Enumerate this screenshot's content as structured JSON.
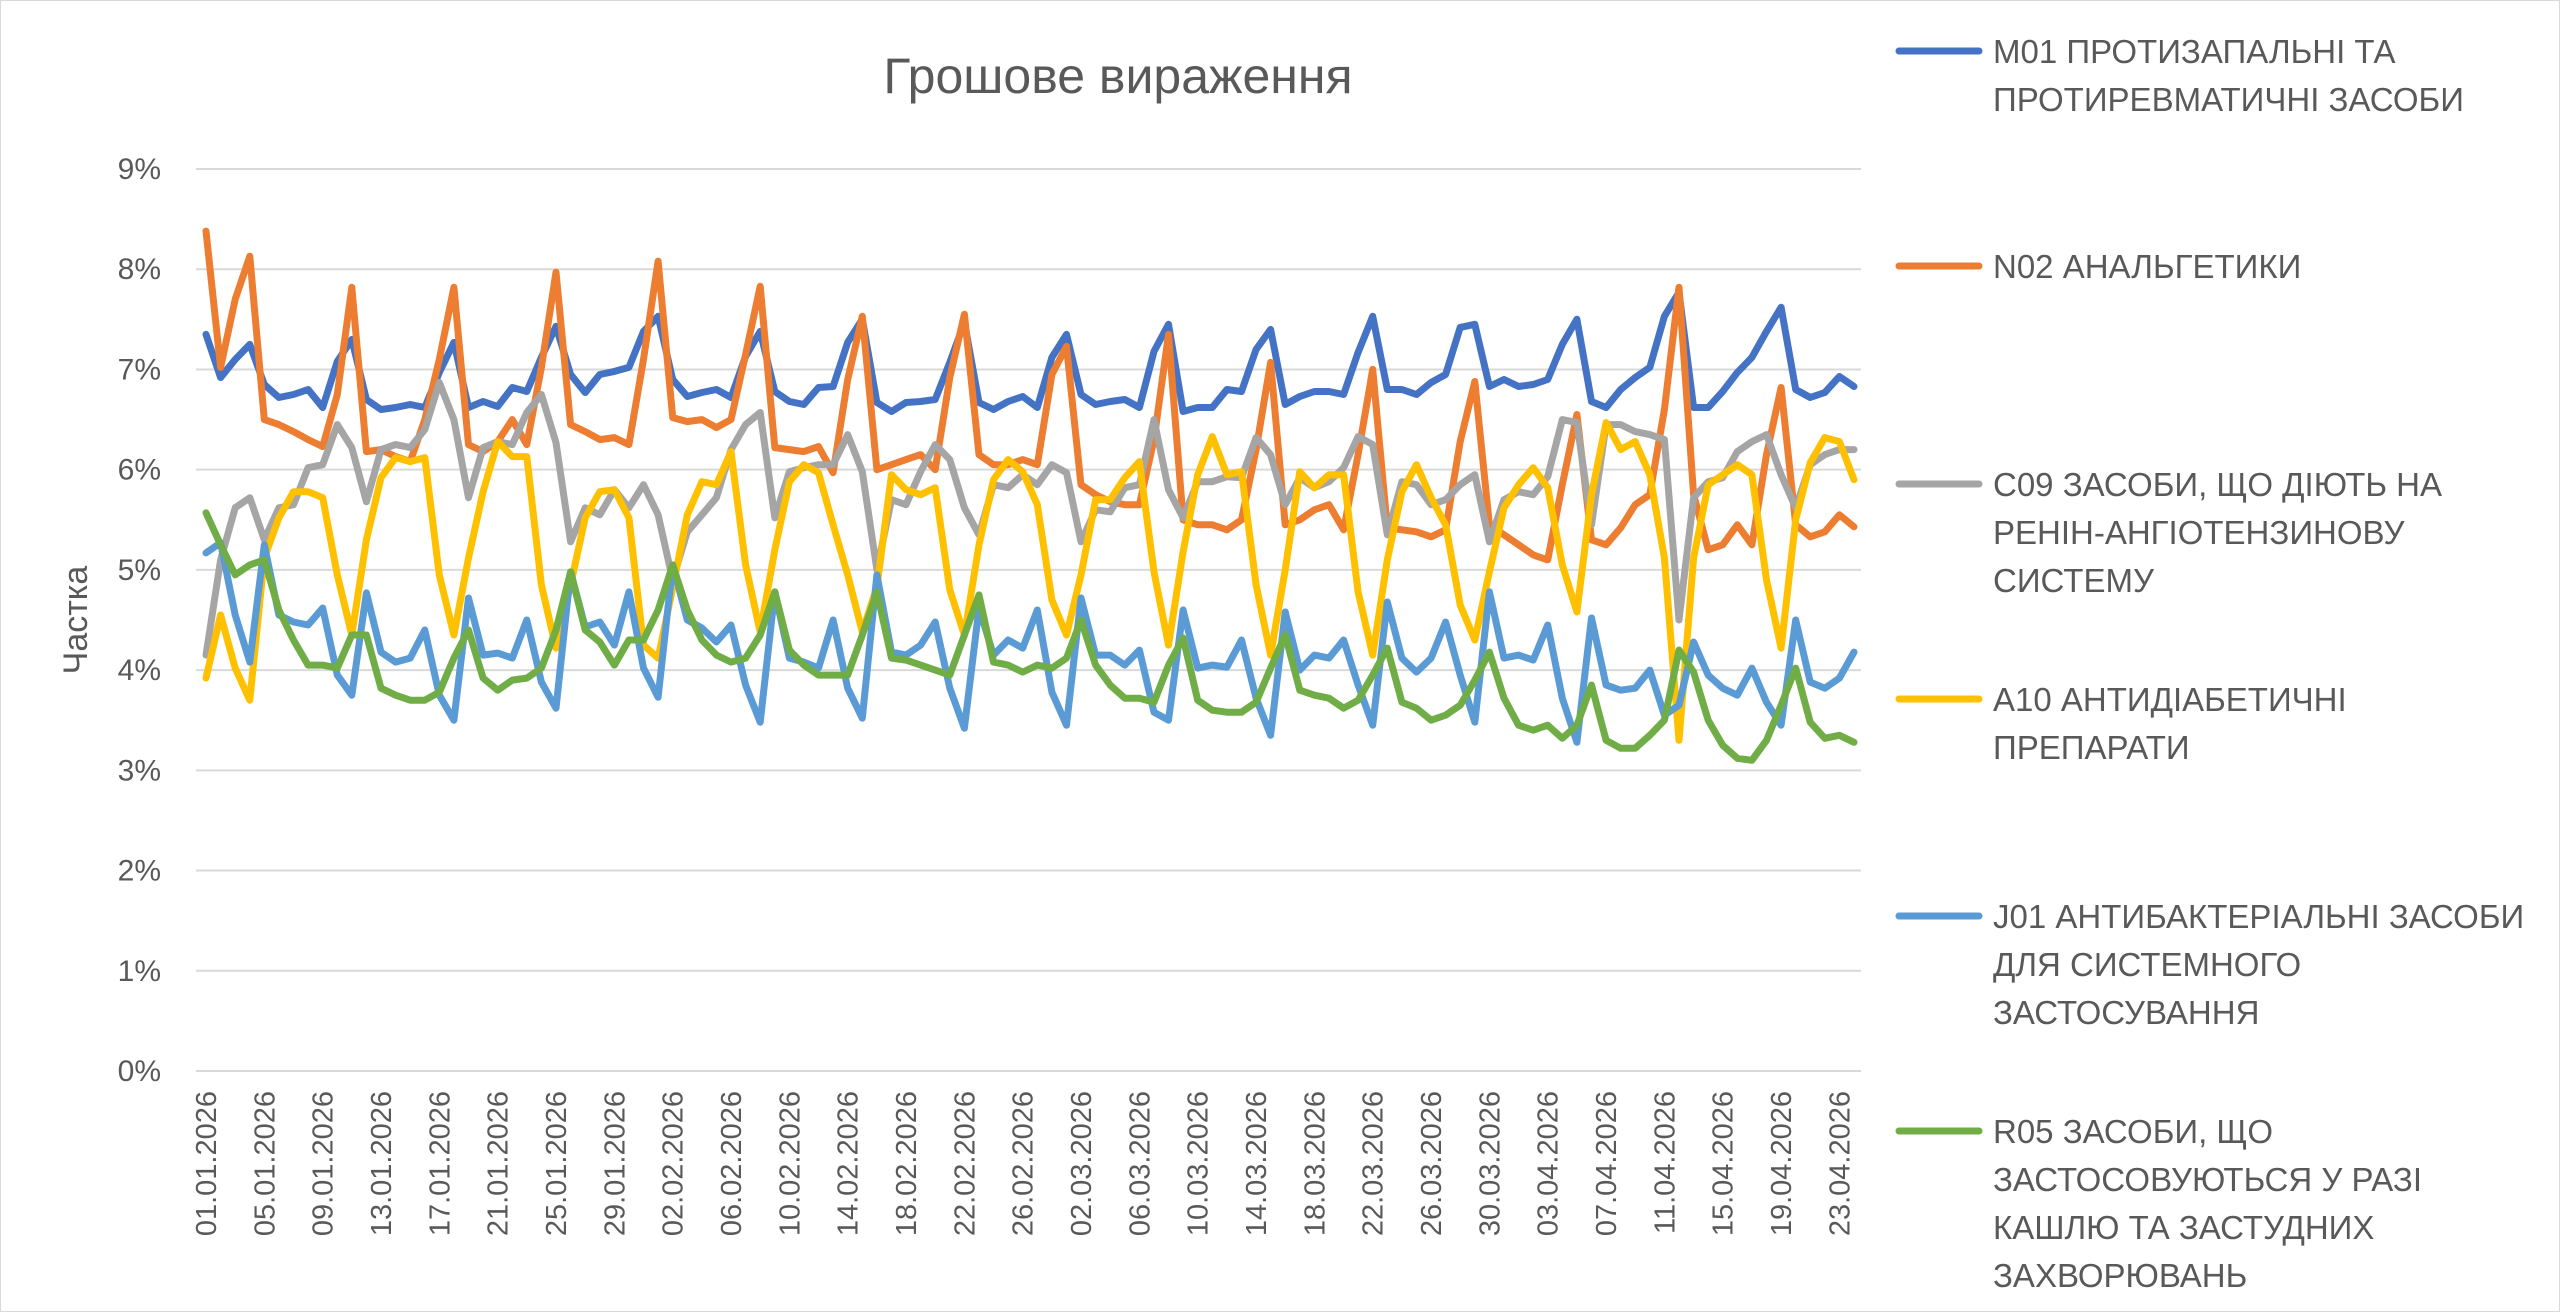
{
  "chart_data": {
    "type": "line",
    "title": "Грошове вираження",
    "ylabel": "Частка",
    "xlabel": "",
    "ylim": [
      0,
      9
    ],
    "y_ticks": [
      "0%",
      "1%",
      "2%",
      "3%",
      "4%",
      "5%",
      "6%",
      "7%",
      "8%",
      "9%"
    ],
    "grid": true,
    "legend_position": "right",
    "x_tick_labels": [
      "01.01.2026",
      "05.01.2026",
      "09.01.2026",
      "13.01.2026",
      "17.01.2026",
      "21.01.2026",
      "25.01.2026",
      "29.01.2026",
      "02.02.2026",
      "06.02.2026",
      "10.02.2026",
      "14.02.2026",
      "18.02.2026",
      "22.02.2026",
      "26.02.2026",
      "02.03.2026",
      "06.03.2026",
      "10.03.2026",
      "14.03.2026",
      "18.03.2026",
      "22.03.2026",
      "26.03.2026",
      "30.03.2026",
      "03.04.2026",
      "07.04.2026",
      "11.04.2026",
      "15.04.2026",
      "19.04.2026",
      "23.04.2026"
    ],
    "x": [
      "01.01.2026",
      "02.01.2026",
      "03.01.2026",
      "04.01.2026",
      "05.01.2026",
      "06.01.2026",
      "07.01.2026",
      "08.01.2026",
      "09.01.2026",
      "10.01.2026",
      "11.01.2026",
      "12.01.2026",
      "13.01.2026",
      "14.01.2026",
      "15.01.2026",
      "16.01.2026",
      "17.01.2026",
      "18.01.2026",
      "19.01.2026",
      "20.01.2026",
      "21.01.2026",
      "22.01.2026",
      "23.01.2026",
      "24.01.2026",
      "25.01.2026",
      "26.01.2026",
      "27.01.2026",
      "28.01.2026",
      "29.01.2026",
      "30.01.2026",
      "31.01.2026",
      "01.02.2026",
      "02.02.2026",
      "03.02.2026",
      "04.02.2026",
      "05.02.2026",
      "06.02.2026",
      "07.02.2026",
      "08.02.2026",
      "09.02.2026",
      "10.02.2026",
      "11.02.2026",
      "12.02.2026",
      "13.02.2026",
      "14.02.2026",
      "15.02.2026",
      "16.02.2026",
      "17.02.2026",
      "18.02.2026",
      "19.02.2026",
      "20.02.2026",
      "21.02.2026",
      "22.02.2026",
      "23.02.2026",
      "24.02.2026",
      "25.02.2026",
      "26.02.2026",
      "27.02.2026",
      "28.02.2026",
      "01.03.2026",
      "02.03.2026",
      "03.03.2026",
      "04.03.2026",
      "05.03.2026",
      "06.03.2026",
      "07.03.2026",
      "08.03.2026",
      "09.03.2026",
      "10.03.2026",
      "11.03.2026",
      "12.03.2026",
      "13.03.2026",
      "14.03.2026",
      "15.03.2026",
      "16.03.2026",
      "17.03.2026",
      "18.03.2026",
      "19.03.2026",
      "20.03.2026",
      "21.03.2026",
      "22.03.2026",
      "23.03.2026",
      "24.03.2026",
      "25.03.2026",
      "26.03.2026",
      "27.03.2026",
      "28.03.2026",
      "29.03.2026",
      "30.03.2026",
      "31.03.2026",
      "01.04.2026",
      "02.04.2026",
      "03.04.2026",
      "04.04.2026",
      "05.04.2026",
      "06.04.2026",
      "07.04.2026",
      "08.04.2026",
      "09.04.2026",
      "10.04.2026",
      "11.04.2026",
      "12.04.2026",
      "13.04.2026",
      "14.04.2026",
      "15.04.2026",
      "16.04.2026",
      "17.04.2026",
      "18.04.2026",
      "19.04.2026",
      "20.04.2026",
      "21.04.2026",
      "22.04.2026",
      "23.04.2026",
      "24.04.2026"
    ],
    "series": [
      {
        "name": "M01 ПРОТИЗАПАЛЬНІ ТА ПРОТИРЕВМАТИЧНІ ЗАСОБИ",
        "color": "#4472C4",
        "values": [
          7.35,
          6.92,
          7.1,
          7.25,
          6.85,
          6.72,
          6.75,
          6.8,
          6.62,
          7.08,
          7.3,
          6.7,
          6.6,
          6.62,
          6.65,
          6.62,
          6.97,
          7.27,
          6.62,
          6.68,
          6.63,
          6.82,
          6.78,
          7.12,
          7.43,
          6.95,
          6.77,
          6.95,
          6.98,
          7.02,
          7.38,
          7.53,
          6.9,
          6.73,
          6.77,
          6.8,
          6.72,
          7.13,
          7.38,
          6.78,
          6.68,
          6.65,
          6.82,
          6.83,
          7.27,
          7.5,
          6.67,
          6.58,
          6.67,
          6.68,
          6.7,
          7.07,
          7.47,
          6.67,
          6.6,
          6.68,
          6.73,
          6.62,
          7.12,
          7.35,
          6.75,
          6.65,
          6.68,
          6.7,
          6.62,
          7.18,
          7.45,
          6.58,
          6.62,
          6.62,
          6.8,
          6.78,
          7.2,
          7.4,
          6.65,
          6.73,
          6.78,
          6.78,
          6.75,
          7.17,
          7.53,
          6.8,
          6.8,
          6.75,
          6.87,
          6.95,
          7.42,
          7.45,
          6.83,
          6.9,
          6.83,
          6.85,
          6.9,
          7.25,
          7.5,
          6.68,
          6.62,
          6.8,
          6.92,
          7.02,
          7.53,
          7.77,
          6.62,
          6.62,
          6.78,
          6.97,
          7.12,
          7.38,
          7.62,
          6.8,
          6.72,
          6.77,
          6.93,
          6.83
        ]
      },
      {
        "name": "N02 АНАЛЬГЕТИКИ",
        "color": "#ED7D31",
        "values": [
          8.38,
          7.02,
          7.7,
          8.13,
          6.5,
          6.45,
          6.38,
          6.3,
          6.23,
          6.75,
          7.82,
          6.18,
          6.2,
          6.13,
          6.08,
          6.5,
          7.1,
          7.82,
          6.25,
          6.18,
          6.28,
          6.5,
          6.25,
          7.02,
          7.97,
          6.45,
          6.38,
          6.3,
          6.32,
          6.25,
          7.1,
          8.08,
          6.52,
          6.48,
          6.5,
          6.42,
          6.5,
          7.15,
          7.83,
          6.22,
          6.2,
          6.18,
          6.23,
          5.97,
          6.9,
          7.53,
          6.0,
          6.05,
          6.1,
          6.15,
          6.0,
          6.92,
          7.55,
          6.15,
          6.05,
          6.05,
          6.1,
          6.05,
          6.95,
          7.23,
          5.85,
          5.75,
          5.68,
          5.65,
          5.65,
          6.3,
          7.35,
          5.5,
          5.45,
          5.45,
          5.4,
          5.5,
          6.2,
          7.07,
          5.45,
          5.5,
          5.6,
          5.65,
          5.4,
          6.15,
          7.0,
          5.42,
          5.4,
          5.38,
          5.33,
          5.4,
          6.28,
          6.88,
          5.45,
          5.35,
          5.25,
          5.15,
          5.1,
          5.85,
          6.55,
          5.3,
          5.25,
          5.42,
          5.65,
          5.75,
          6.6,
          7.82,
          5.75,
          5.2,
          5.25,
          5.45,
          5.25,
          6.15,
          6.82,
          5.45,
          5.33,
          5.38,
          5.55,
          5.43
        ]
      },
      {
        "name": "C09 ЗАСОБИ, ЩО ДІЮТЬ НА РЕНІН-АНГІОТЕНЗИНОВУ СИСТЕМУ",
        "color": "#A5A5A5",
        "values": [
          4.15,
          5.1,
          5.62,
          5.72,
          5.3,
          5.62,
          5.65,
          6.02,
          6.05,
          6.45,
          6.22,
          5.68,
          6.2,
          6.25,
          6.22,
          6.4,
          6.87,
          6.5,
          5.72,
          6.22,
          6.28,
          6.25,
          6.57,
          6.75,
          6.27,
          5.28,
          5.62,
          5.55,
          5.8,
          5.62,
          5.85,
          5.55,
          4.9,
          5.38,
          5.55,
          5.72,
          6.2,
          6.45,
          6.57,
          5.52,
          5.98,
          6.02,
          6.05,
          6.05,
          6.35,
          5.98,
          5.0,
          5.7,
          5.65,
          5.98,
          6.25,
          6.1,
          5.62,
          5.35,
          5.85,
          5.82,
          5.95,
          5.85,
          6.05,
          5.97,
          5.28,
          5.6,
          5.58,
          5.82,
          5.85,
          6.5,
          5.8,
          5.52,
          5.88,
          5.88,
          5.93,
          5.92,
          6.32,
          6.15,
          5.65,
          5.92,
          5.82,
          5.88,
          6.02,
          6.33,
          6.25,
          5.35,
          5.88,
          5.85,
          5.65,
          5.7,
          5.85,
          5.95,
          5.28,
          5.7,
          5.78,
          5.75,
          5.93,
          6.5,
          6.47,
          5.45,
          6.45,
          6.45,
          6.38,
          6.35,
          6.3,
          4.5,
          5.72,
          5.88,
          5.92,
          6.18,
          6.28,
          6.35,
          5.95,
          5.62,
          6.05,
          6.15,
          6.2,
          6.2
        ]
      },
      {
        "name": "A10 АНТИДІАБЕТИЧНІ ПРЕПАРАТИ",
        "color": "#FFC000",
        "values": [
          3.92,
          4.55,
          4.02,
          3.7,
          5.12,
          5.52,
          5.78,
          5.78,
          5.72,
          4.95,
          4.35,
          5.3,
          5.92,
          6.12,
          6.08,
          6.12,
          4.95,
          4.35,
          5.12,
          5.78,
          6.28,
          6.13,
          6.13,
          4.85,
          4.22,
          4.85,
          5.52,
          5.78,
          5.8,
          5.52,
          4.25,
          4.12,
          4.82,
          5.55,
          5.88,
          5.85,
          6.18,
          5.05,
          4.38,
          5.2,
          5.88,
          6.05,
          5.97,
          5.45,
          4.95,
          4.38,
          4.83,
          5.95,
          5.8,
          5.75,
          5.82,
          4.8,
          4.35,
          5.25,
          5.9,
          6.1,
          5.98,
          5.65,
          4.7,
          4.35,
          4.95,
          5.7,
          5.7,
          5.92,
          6.08,
          4.98,
          4.25,
          5.18,
          5.95,
          6.33,
          5.95,
          5.98,
          4.85,
          4.15,
          5.0,
          5.98,
          5.82,
          5.95,
          5.95,
          4.78,
          4.15,
          5.1,
          5.78,
          6.05,
          5.72,
          5.45,
          4.65,
          4.3,
          4.98,
          5.62,
          5.85,
          6.02,
          5.82,
          5.05,
          4.58,
          5.75,
          6.47,
          6.2,
          6.28,
          5.95,
          5.12,
          3.3,
          5.12,
          5.85,
          5.95,
          6.05,
          5.95,
          4.9,
          4.22,
          5.5,
          6.07,
          6.32,
          6.28,
          5.9
        ]
      },
      {
        "name": "J01 АНТИБАКТЕРІАЛЬНІ ЗАСОБИ ДЛЯ СИСТЕМНОГО ЗАСТОСУВАННЯ",
        "color": "#5B9BD5",
        "values": [
          5.17,
          5.27,
          4.55,
          4.08,
          5.25,
          4.55,
          4.48,
          4.45,
          4.62,
          3.95,
          3.75,
          4.77,
          4.18,
          4.08,
          4.12,
          4.4,
          3.75,
          3.5,
          4.72,
          4.15,
          4.17,
          4.12,
          4.5,
          3.88,
          3.62,
          4.98,
          4.43,
          4.48,
          4.25,
          4.78,
          4.02,
          3.73,
          5.05,
          4.5,
          4.42,
          4.28,
          4.45,
          3.85,
          3.48,
          4.78,
          4.12,
          4.08,
          4.02,
          4.5,
          3.82,
          3.52,
          4.95,
          4.18,
          4.15,
          4.25,
          4.48,
          3.82,
          3.42,
          4.62,
          4.15,
          4.3,
          4.22,
          4.6,
          3.78,
          3.45,
          4.72,
          4.15,
          4.15,
          4.05,
          4.2,
          3.58,
          3.5,
          4.6,
          4.02,
          4.05,
          4.03,
          4.3,
          3.72,
          3.35,
          4.58,
          4.0,
          4.15,
          4.12,
          4.3,
          3.85,
          3.45,
          4.68,
          4.12,
          3.98,
          4.12,
          4.48,
          3.95,
          3.48,
          4.78,
          4.12,
          4.15,
          4.1,
          4.45,
          3.72,
          3.28,
          4.52,
          3.85,
          3.8,
          3.82,
          4.0,
          3.55,
          3.65,
          4.28,
          3.95,
          3.82,
          3.75,
          4.02,
          3.68,
          3.45,
          4.5,
          3.88,
          3.82,
          3.92,
          4.18
        ]
      },
      {
        "name": "R05 ЗАСОБИ, ЩО ЗАСТОСОВУЮТЬСЯ У РАЗІ КАШЛЮ ТА ЗАСТУДНИХ ЗАХВОРЮВАНЬ",
        "color": "#70AD47",
        "values": [
          5.57,
          5.25,
          4.95,
          5.05,
          5.1,
          4.6,
          4.3,
          4.05,
          4.05,
          4.02,
          4.35,
          4.35,
          3.82,
          3.75,
          3.7,
          3.7,
          3.78,
          4.12,
          4.4,
          3.92,
          3.8,
          3.9,
          3.92,
          4.02,
          4.4,
          4.98,
          4.4,
          4.28,
          4.05,
          4.3,
          4.3,
          4.6,
          5.05,
          4.6,
          4.3,
          4.15,
          4.08,
          4.12,
          4.35,
          4.78,
          4.2,
          4.05,
          3.95,
          3.95,
          3.95,
          4.35,
          4.78,
          4.12,
          4.1,
          4.05,
          4.0,
          3.95,
          4.35,
          4.75,
          4.08,
          4.05,
          3.98,
          4.05,
          4.02,
          4.12,
          4.5,
          4.05,
          3.85,
          3.72,
          3.72,
          3.68,
          4.05,
          4.32,
          3.7,
          3.6,
          3.58,
          3.58,
          3.68,
          4.02,
          4.35,
          3.8,
          3.75,
          3.72,
          3.62,
          3.7,
          3.95,
          4.22,
          3.68,
          3.62,
          3.5,
          3.55,
          3.65,
          3.9,
          4.18,
          3.72,
          3.45,
          3.4,
          3.45,
          3.32,
          3.45,
          3.85,
          3.3,
          3.22,
          3.22,
          3.35,
          3.5,
          4.2,
          3.98,
          3.5,
          3.25,
          3.12,
          3.1,
          3.3,
          3.65,
          4.02,
          3.48,
          3.32,
          3.35,
          3.28
        ]
      }
    ]
  }
}
